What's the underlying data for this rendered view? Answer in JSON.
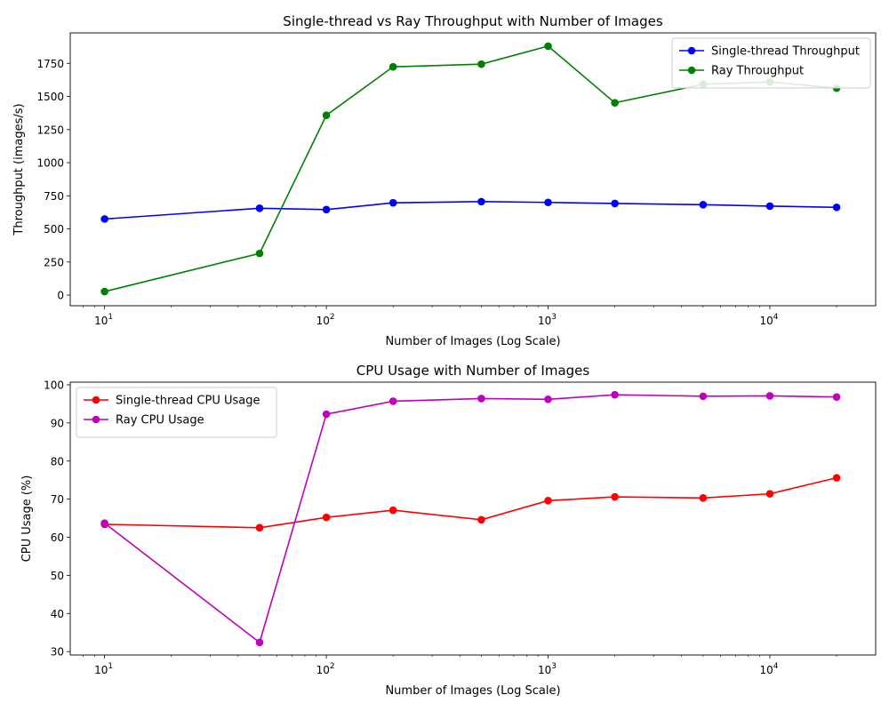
{
  "chart_data": [
    {
      "type": "line",
      "title": "Single-thread vs Ray Throughput with Number of Images",
      "xlabel": "Number of Images (Log Scale)",
      "ylabel": "Throughput (images/s)",
      "xscale": "log",
      "xlim": [
        7,
        30000
      ],
      "ylim": [
        -80,
        1980
      ],
      "xticks": [
        10,
        100,
        1000,
        10000
      ],
      "xtick_labels": [
        [
          "10",
          "1"
        ],
        [
          "10",
          "2"
        ],
        [
          "10",
          "3"
        ],
        [
          "10",
          "4"
        ]
      ],
      "yticks": [
        0,
        250,
        500,
        750,
        1000,
        1250,
        1500,
        1750
      ],
      "ytick_labels": [
        "0",
        "250",
        "500",
        "750",
        "1000",
        "1250",
        "1500",
        "1750"
      ],
      "legend_position": "upper right",
      "x": [
        10,
        50,
        100,
        200,
        500,
        1000,
        2000,
        5000,
        10000,
        20000
      ],
      "series": [
        {
          "name": "Single-thread Throughput",
          "color": "#0000ff",
          "values": [
            575,
            656,
            646,
            697,
            706,
            700,
            692,
            683,
            672,
            663
          ]
        },
        {
          "name": "Ray Throughput",
          "color": "#008000",
          "values": [
            27,
            315,
            1358,
            1724,
            1744,
            1880,
            1452,
            1592,
            1610,
            1563
          ]
        }
      ]
    },
    {
      "type": "line",
      "title": "CPU Usage with Number of Images",
      "xlabel": "Number of Images (Log Scale)",
      "ylabel": "CPU Usage (%)",
      "xscale": "log",
      "xlim": [
        7,
        30000
      ],
      "ylim": [
        29.1,
        100.7
      ],
      "xticks": [
        10,
        100,
        1000,
        10000
      ],
      "xtick_labels": [
        [
          "10",
          "1"
        ],
        [
          "10",
          "2"
        ],
        [
          "10",
          "3"
        ],
        [
          "10",
          "4"
        ]
      ],
      "yticks": [
        30,
        40,
        50,
        60,
        70,
        80,
        90,
        100
      ],
      "ytick_labels": [
        "30",
        "40",
        "50",
        "60",
        "70",
        "80",
        "90",
        "100"
      ],
      "legend_position": "upper left",
      "x": [
        10,
        50,
        100,
        200,
        500,
        1000,
        2000,
        5000,
        10000,
        20000
      ],
      "series": [
        {
          "name": "Single-thread CPU Usage",
          "color": "#ff0000",
          "values": [
            63.4,
            62.5,
            65.2,
            67.1,
            64.6,
            69.6,
            70.6,
            70.3,
            71.4,
            75.6
          ]
        },
        {
          "name": "Ray CPU Usage",
          "color": "#bf00bf",
          "values": [
            63.7,
            32.4,
            92.3,
            95.7,
            96.4,
            96.2,
            97.4,
            97.0,
            97.1,
            96.8
          ]
        }
      ]
    }
  ]
}
